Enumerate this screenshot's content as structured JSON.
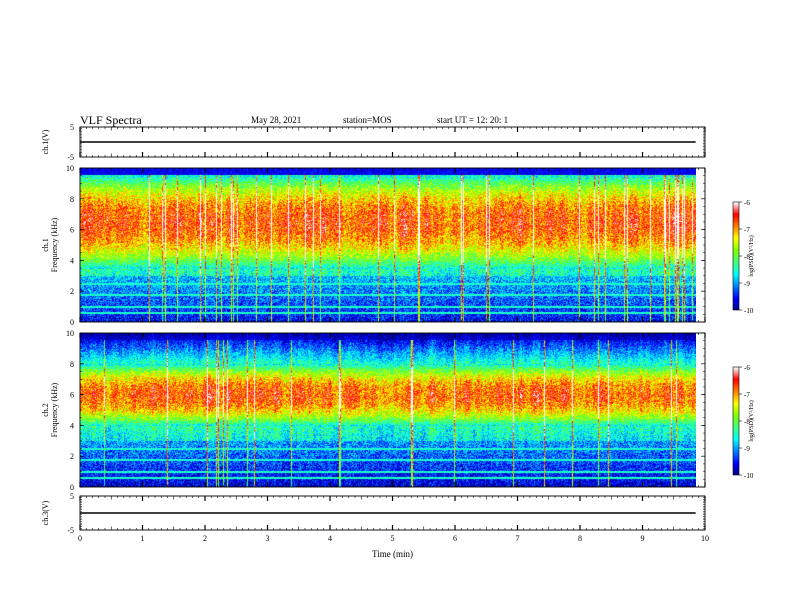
{
  "header": {
    "title": "VLF Spectra",
    "date": "May 28, 2021",
    "station": "station=MOS",
    "start": "start UT =  12: 20: 1"
  },
  "chart_data": [
    {
      "type": "line",
      "id": "ch1_voltage",
      "ylabel": "ch.1(V)",
      "ylim": [
        -5,
        5
      ],
      "yticks": [
        "5",
        "-5"
      ],
      "series": [
        {
          "x": [
            0,
            9.85
          ],
          "y": [
            0,
            0
          ]
        }
      ]
    },
    {
      "type": "heatmap",
      "id": "ch1_spectrogram",
      "ylabel": "ch.1\nFrequency (kHz)",
      "ylim": [
        0,
        10
      ],
      "yticks": [
        "10",
        "8",
        "6",
        "4",
        "2",
        "0"
      ],
      "dominant_band_khz": [
        3.5,
        9.5
      ],
      "colorbar": {
        "label": "log(PSD)(V²/Hz)",
        "ticks": [
          "-6",
          "-7",
          "-8",
          "-9",
          "-10"
        ],
        "range": [
          -10,
          -6
        ]
      }
    },
    {
      "type": "heatmap",
      "id": "ch2_spectrogram",
      "ylabel": "ch.2\nFrequency (kHz)",
      "ylim": [
        0,
        10
      ],
      "yticks": [
        "10",
        "8",
        "6",
        "4",
        "2",
        "0"
      ],
      "dominant_band_khz": [
        4,
        8
      ],
      "colorbar": {
        "label": "log(PSD)(V²/Hz)",
        "ticks": [
          "-6",
          "-7",
          "-8",
          "-9",
          "-10"
        ],
        "range": [
          -10,
          -6
        ]
      }
    },
    {
      "type": "line",
      "id": "ch3_voltage",
      "ylabel": "ch.3(V)",
      "ylim": [
        -5,
        5
      ],
      "yticks": [
        "5",
        "-5"
      ],
      "series": [
        {
          "x": [
            0,
            9.85
          ],
          "y": [
            0,
            0
          ]
        }
      ]
    }
  ],
  "xaxis": {
    "label": "Time (min)",
    "xlim": [
      0,
      10
    ],
    "ticks": [
      "0",
      "1",
      "2",
      "3",
      "4",
      "5",
      "6",
      "7",
      "8",
      "9",
      "10"
    ]
  },
  "colormap": [
    "#00007f",
    "#0000ff",
    "#0080ff",
    "#00ffff",
    "#40ff80",
    "#80ff00",
    "#ffff00",
    "#ff8000",
    "#ff0000",
    "#ffffff"
  ]
}
